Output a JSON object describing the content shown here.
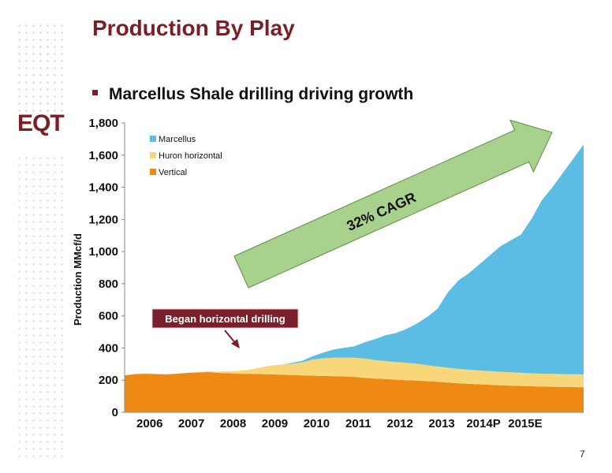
{
  "header": {
    "title": "Production By Play",
    "bullet": "Marcellus Shale drilling driving growth"
  },
  "logo": {
    "text": "EQT"
  },
  "page": {
    "number": "7"
  },
  "colors": {
    "marcellus": "#5bbde3",
    "huron": "#f8d77a",
    "vertical": "#ee8a14",
    "arrow": "#a9d18e",
    "callout": "#7a1f2b",
    "title": "#7b1f27"
  },
  "annotations": {
    "cagr": "32% CAGR",
    "callout": "Began horizontal drilling"
  },
  "chart_data": {
    "type": "area",
    "stacked": true,
    "ylabel": "Production MMcf/d",
    "ylim": [
      0,
      1800
    ],
    "yticks": [
      0,
      200,
      400,
      600,
      800,
      1000,
      1200,
      1400,
      1600,
      1800
    ],
    "xlim": [
      2005.0,
      2016.0
    ],
    "categories": [
      "2006",
      "2007",
      "2008",
      "2009",
      "2010",
      "2011",
      "2012",
      "2013",
      "2014P",
      "2015E"
    ],
    "legend_position": "top-left",
    "x": [
      2005.0,
      2005.25,
      2005.5,
      2005.75,
      2006.0,
      2006.25,
      2006.5,
      2006.75,
      2007.0,
      2007.25,
      2007.5,
      2007.75,
      2008.0,
      2008.25,
      2008.5,
      2008.75,
      2009.0,
      2009.25,
      2009.5,
      2009.75,
      2010.0,
      2010.25,
      2010.5,
      2010.75,
      2011.0,
      2011.25,
      2011.5,
      2011.75,
      2012.0,
      2012.25,
      2012.5,
      2012.75,
      2013.0,
      2013.25,
      2013.5,
      2013.75,
      2014.0,
      2014.25,
      2014.5,
      2014.75,
      2015.0,
      2015.25,
      2015.5,
      2015.75,
      2016.0
    ],
    "series": [
      {
        "name": "Vertical",
        "values": [
          230,
          238,
          240,
          238,
          236,
          240,
          245,
          248,
          250,
          245,
          243,
          240,
          240,
          238,
          236,
          234,
          232,
          230,
          228,
          226,
          225,
          223,
          220,
          215,
          210,
          207,
          203,
          200,
          197,
          193,
          190,
          185,
          180,
          177,
          174,
          171,
          168,
          166,
          164,
          162,
          160,
          159,
          158,
          157,
          156
        ]
      },
      {
        "name": "Huron horizontal",
        "values": [
          0,
          0,
          0,
          0,
          0,
          0,
          0,
          0,
          5,
          8,
          12,
          18,
          25,
          40,
          55,
          62,
          70,
          80,
          100,
          110,
          115,
          118,
          120,
          120,
          115,
          112,
          110,
          108,
          105,
          100,
          95,
          92,
          90,
          88,
          86,
          85,
          84,
          83,
          82,
          81,
          80,
          80,
          80,
          80,
          80
        ]
      },
      {
        "name": "Marcellus",
        "values": [
          0,
          0,
          0,
          0,
          0,
          0,
          0,
          0,
          0,
          0,
          0,
          0,
          0,
          0,
          0,
          0,
          5,
          10,
          20,
          35,
          50,
          60,
          70,
          100,
          130,
          160,
          180,
          210,
          250,
          300,
          360,
          470,
          550,
          600,
          660,
          720,
          780,
          820,
          860,
          960,
          1080,
          1160,
          1250,
          1340,
          1430
        ]
      }
    ]
  }
}
